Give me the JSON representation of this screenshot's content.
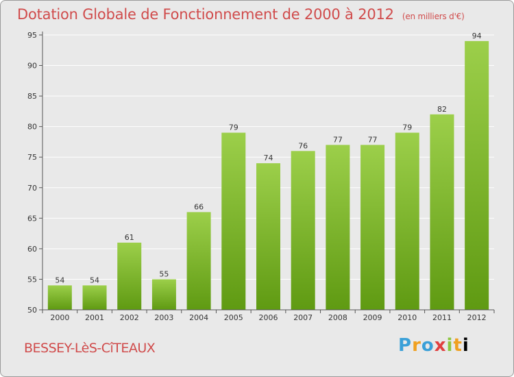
{
  "title": "Dotation Globale de Fonctionnement de 2000 à 2012",
  "subtitle": "(en milliers d'€)",
  "commune": "BESSEY-LèS-CîTEAUX",
  "logo_letters": [
    "P",
    "r",
    "o",
    "x",
    "i",
    "t",
    "i"
  ],
  "colors": {
    "bar_top": "#9ccf4a",
    "bar_bottom": "#5f9a12",
    "title": "#d04b4b",
    "background": "#e9e9e9",
    "grid": "#ffffff"
  },
  "chart_data": {
    "type": "bar",
    "categories": [
      "2000",
      "2001",
      "2002",
      "2003",
      "2004",
      "2005",
      "2006",
      "2007",
      "2008",
      "2009",
      "2010",
      "2011",
      "2012"
    ],
    "values": [
      54,
      54,
      61,
      55,
      66,
      79,
      74,
      76,
      77,
      77,
      79,
      82,
      94
    ],
    "value_labels": [
      "54",
      "54",
      "61",
      "55",
      "66",
      "79",
      "74",
      "76",
      "77",
      "77",
      "79",
      "82",
      "94"
    ],
    "yticks": [
      "50",
      "55",
      "60",
      "65",
      "70",
      "75",
      "80",
      "85",
      "90",
      "95"
    ],
    "ylim": [
      50,
      95
    ],
    "grid": true
  }
}
